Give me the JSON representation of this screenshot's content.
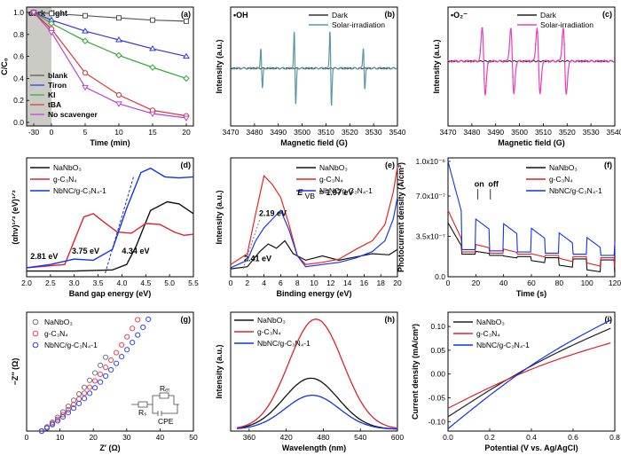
{
  "chart_data": [
    {
      "id": "a",
      "type": "line",
      "panel_label": "(a)",
      "xlabel": "Time (min)",
      "ylabel": "C/C₀",
      "xlim": [
        -30,
        20
      ],
      "ylim": [
        0,
        1.0
      ],
      "xticks": [
        "-30",
        "0",
        "5",
        "10",
        "15",
        "20"
      ],
      "xtick_values": [
        -30,
        0,
        5,
        10,
        15,
        20
      ],
      "yticks": [
        "0.0",
        "0.2",
        "0.4",
        "0.6",
        "0.8",
        "1.0"
      ],
      "ytick_values": [
        0,
        0.2,
        0.4,
        0.6,
        0.8,
        1.0
      ],
      "annotation": "dark",
      "annotation2": "light",
      "x": [
        -30,
        0,
        5,
        10,
        15,
        20
      ],
      "series": [
        {
          "name": "blank",
          "color": "#555555",
          "marker": "square",
          "values": [
            1.0,
            0.99,
            0.97,
            0.95,
            0.93,
            0.92
          ]
        },
        {
          "name": "Tiron",
          "color": "#3333dd",
          "marker": "triangle",
          "values": [
            1.0,
            0.93,
            0.83,
            0.75,
            0.67,
            0.6
          ]
        },
        {
          "name": "KI",
          "color": "#33aa33",
          "marker": "diamond",
          "values": [
            1.0,
            0.9,
            0.74,
            0.61,
            0.5,
            0.4
          ]
        },
        {
          "name": "tBA",
          "color": "#dd3333",
          "marker": "circle",
          "values": [
            1.0,
            0.85,
            0.45,
            0.25,
            0.11,
            0.06
          ]
        },
        {
          "name": "No scavenger",
          "color": "#bb44cc",
          "marker": "triangle-down",
          "values": [
            1.0,
            0.82,
            0.32,
            0.17,
            0.08,
            0.04
          ]
        }
      ]
    },
    {
      "id": "b",
      "type": "line",
      "panel_label": "(b)",
      "radical": "•OH",
      "xlabel": "Magnetic field (G)",
      "ylabel": "Intensity (a.u.)",
      "xlim": [
        3470,
        3540
      ],
      "xticks": [
        "3470",
        "3480",
        "3490",
        "3500",
        "3510",
        "3520",
        "3530",
        "3540"
      ],
      "xtick_values": [
        3470,
        3480,
        3490,
        3500,
        3510,
        3520,
        3530,
        3540
      ],
      "peaks": [
        3483,
        3497,
        3512,
        3526
      ],
      "peak_heights": [
        0.55,
        1.0,
        1.0,
        0.55
      ],
      "series": [
        {
          "name": "Dark",
          "color": "#333333"
        },
        {
          "name": "Solar-irradiation",
          "color": "#5a97a5"
        }
      ]
    },
    {
      "id": "c",
      "type": "line",
      "panel_label": "(c)",
      "radical": "•O₂⁻",
      "xlabel": "Magnetic field (G)",
      "ylabel": "Intensity (a.u.)",
      "xlim": [
        3470,
        3540
      ],
      "xticks": [
        "3470",
        "3480",
        "3490",
        "3500",
        "3510",
        "3520",
        "3530",
        "3540"
      ],
      "xtick_values": [
        3470,
        3480,
        3490,
        3500,
        3510,
        3520,
        3530,
        3540
      ],
      "peaks": [
        3485,
        3497,
        3508,
        3519
      ],
      "series": [
        {
          "name": "Dark",
          "color": "#222222"
        },
        {
          "name": "Solar-irradiation",
          "color": "#ee3dbb"
        }
      ]
    },
    {
      "id": "d",
      "type": "line",
      "panel_label": "(d)",
      "xlabel": "Band gap energy (eV)",
      "ylabel": "(αhν)¹ᐟ² (eV)¹ᐟ²",
      "xlim": [
        2.0,
        5.5
      ],
      "xticks": [
        "2.0",
        "2.5",
        "3.0",
        "3.5",
        "4.0",
        "4.5",
        "5.0",
        "5.5"
      ],
      "xtick_values": [
        2.0,
        2.5,
        3.0,
        3.5,
        4.0,
        4.5,
        5.0,
        5.5
      ],
      "annotations": [
        "2.81 eV",
        "3.75 eV",
        "4.34 eV"
      ],
      "series": [
        {
          "name": "NaNbO₃",
          "color": "#111111",
          "x": [
            2.0,
            3.0,
            3.8,
            4.1,
            4.3,
            4.6,
            4.95,
            5.2,
            5.5
          ],
          "values": [
            0.02,
            0.02,
            0.03,
            0.08,
            0.25,
            0.58,
            0.66,
            0.64,
            0.55
          ]
        },
        {
          "name": "g-C₃N₄",
          "color": "#dd2233",
          "x": [
            2.0,
            2.8,
            3.0,
            3.2,
            3.4,
            3.6,
            3.9,
            4.2,
            4.5,
            4.8,
            5.1,
            5.3,
            5.5
          ],
          "values": [
            0.05,
            0.08,
            0.3,
            0.52,
            0.55,
            0.48,
            0.38,
            0.37,
            0.46,
            0.45,
            0.38,
            0.35,
            0.36
          ]
        },
        {
          "name": "NbNC/g-C₃N₄-1",
          "color": "#1133ee",
          "x": [
            2.0,
            2.5,
            3.0,
            3.4,
            3.8,
            4.1,
            4.4,
            4.6,
            4.9,
            5.2,
            5.5
          ],
          "values": [
            0.05,
            0.08,
            0.13,
            0.12,
            0.22,
            0.6,
            0.93,
            0.97,
            0.89,
            0.88,
            0.89
          ]
        }
      ]
    },
    {
      "id": "e",
      "type": "line",
      "panel_label": "(e)",
      "xlabel": "Binding energy (eV)",
      "ylabel": "Intensity (a.u.)",
      "xlim": [
        0,
        20
      ],
      "xticks": [
        "0",
        "2",
        "4",
        "6",
        "8",
        "10",
        "12",
        "14",
        "16",
        "18",
        "20"
      ],
      "xtick_values": [
        0,
        2,
        4,
        6,
        8,
        10,
        12,
        14,
        16,
        18,
        20
      ],
      "annotations": [
        "E",
        "VB",
        " = 1.97 eV",
        "2.19 eV",
        "2.41 eV"
      ],
      "series": [
        {
          "name": "NaNbO₃",
          "color": "#111111",
          "x": [
            0,
            2,
            3.5,
            4.5,
            5.5,
            6.5,
            7.5,
            9,
            11,
            13,
            15,
            17,
            19,
            20
          ],
          "values": [
            0.04,
            0.06,
            0.2,
            0.27,
            0.23,
            0.3,
            0.18,
            0.12,
            0.16,
            0.12,
            0.15,
            0.18,
            0.17,
            0.22
          ]
        },
        {
          "name": "g-C₃N₄",
          "color": "#ee2222",
          "x": [
            0,
            2,
            3,
            4,
            5,
            6,
            7,
            8,
            9,
            11,
            13,
            15,
            17,
            18.5,
            19.5,
            20
          ],
          "values": [
            0.08,
            0.18,
            0.55,
            0.9,
            0.82,
            0.7,
            0.45,
            0.16,
            0.08,
            0.1,
            0.13,
            0.22,
            0.3,
            0.45,
            0.75,
            0.98
          ]
        },
        {
          "name": "NbNC/g-C₃N₄-1",
          "color": "#2233ee",
          "x": [
            0,
            2,
            3,
            4,
            5,
            6,
            7,
            8,
            9,
            11,
            13,
            15,
            17,
            18.5,
            19.5,
            20
          ],
          "values": [
            0.05,
            0.12,
            0.3,
            0.42,
            0.5,
            0.58,
            0.4,
            0.16,
            0.06,
            0.08,
            0.1,
            0.14,
            0.2,
            0.3,
            0.5,
            0.7
          ]
        }
      ]
    },
    {
      "id": "f",
      "type": "line",
      "panel_label": "(f)",
      "xlabel": "Time (s)",
      "ylabel": "Photocurrent density (A/cm²)",
      "xlim": [
        0,
        120
      ],
      "ylim": [
        0,
        1e-06
      ],
      "xticks": [
        "0",
        "20",
        "40",
        "60",
        "80",
        "100",
        "120"
      ],
      "xtick_values": [
        0,
        20,
        40,
        60,
        80,
        100,
        120
      ],
      "yticks": [
        "0.0",
        "3.5x10⁻⁷",
        "7.0x10⁻⁷",
        "1.0x10⁻⁶"
      ],
      "ytick_values": [
        0,
        3.5e-07,
        7e-07,
        1e-06
      ],
      "on_label": "on",
      "off_label": "off",
      "series": [
        {
          "name": "NaNbO₃",
          "color": "#111111",
          "baseline": 2e-07,
          "on": 2.6e-07
        },
        {
          "name": "g-C₃N₄",
          "color": "#dd2222",
          "baseline": 2.2e-07,
          "on": 3.2e-07
        },
        {
          "name": "NbNC/g-C₃N₄-1",
          "color": "#1133ee",
          "baseline": 2.4e-07,
          "on": 5.4e-07
        }
      ]
    },
    {
      "id": "g",
      "type": "scatter",
      "panel_label": "(g)",
      "xlabel": "Z′ (Ω)",
      "ylabel": "−Z″ (Ω)",
      "xlim": [
        0,
        50
      ],
      "xticks": [
        "0",
        "10",
        "20",
        "30",
        "40",
        "50"
      ],
      "xtick_values": [
        0,
        10,
        20,
        30,
        40,
        50
      ],
      "circuit_labels": [
        "Rₛ",
        "Rₑₜ",
        "CPE"
      ],
      "series": [
        {
          "name": "NaNbO₃",
          "color": "#777777",
          "slope": 1.1,
          "x_end": 24
        },
        {
          "name": "g-C₃N₄",
          "color": "#ee4455",
          "slope": 0.95,
          "x_end": 34
        },
        {
          "name": "NbNC/g-C₃N₄-1",
          "color": "#3344ee",
          "slope": 0.82,
          "x_end": 40
        }
      ]
    },
    {
      "id": "h",
      "type": "line",
      "panel_label": "(h)",
      "xlabel": "Wavelength (nm)",
      "ylabel": "Intensity (a.u.)",
      "xlim": [
        330,
        600
      ],
      "xticks": [
        "360",
        "420",
        "480",
        "540",
        "600"
      ],
      "xtick_values": [
        360,
        420,
        480,
        540,
        600
      ],
      "series": [
        {
          "name": "NaNbO₃",
          "color": "#111111",
          "peak_x": 460,
          "peak_y": 0.45
        },
        {
          "name": "g-C₃N₄",
          "color": "#dd2233",
          "peak_x": 468,
          "peak_y": 0.97
        },
        {
          "name": "NbNC/g-C₃N₄-1",
          "color": "#1133ee",
          "peak_x": 462,
          "peak_y": 0.3
        }
      ]
    },
    {
      "id": "i",
      "type": "line",
      "panel_label": "(i)",
      "xlabel": "Potential (V vs. Ag/AgCl)",
      "ylabel": "Current density (mA/cm²)",
      "xlim": [
        0,
        0.8
      ],
      "ylim": [
        -0.12,
        0.13
      ],
      "xticks": [
        "0.0",
        "0.2",
        "0.4",
        "0.6",
        "0.8"
      ],
      "xtick_values": [
        0,
        0.2,
        0.4,
        0.6,
        0.8
      ],
      "yticks": [
        "-0.10",
        "-0.05",
        "0.00",
        "0.05",
        "0.10"
      ],
      "ytick_values": [
        -0.1,
        -0.05,
        0,
        0.05,
        0.1
      ],
      "series": [
        {
          "name": "NaNbO₃",
          "color": "#222222",
          "y_start": -0.09,
          "y_end": 0.1
        },
        {
          "name": "g-C₃N₄",
          "color": "#dd2233",
          "y_start": -0.072,
          "y_end": 0.068
        },
        {
          "name": "NbNC/g-C₃N₄-1",
          "color": "#1133ee",
          "y_start": -0.115,
          "y_end": 0.118
        }
      ]
    }
  ]
}
